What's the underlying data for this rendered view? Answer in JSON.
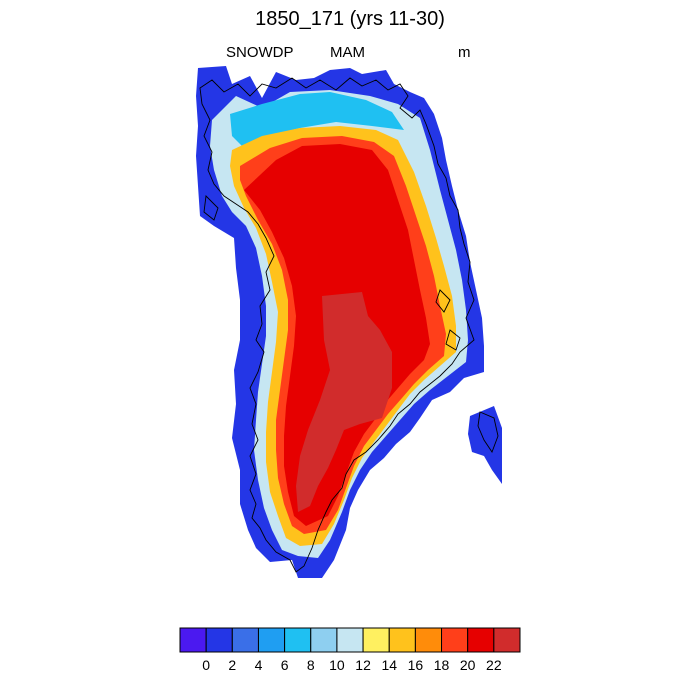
{
  "title": "1850_171 (yrs 11-30)",
  "left_label": "SNOWDP",
  "center_label": "MAM",
  "right_label": "m",
  "colorbar": {
    "colors": [
      "#4b19f0",
      "#2436e6",
      "#3a6fe8",
      "#1f9ef2",
      "#1fc0f2",
      "#8ecff0",
      "#c6e6f2",
      "#fff060",
      "#ffc21c",
      "#ff8c0a",
      "#ff3f1a",
      "#e60000",
      "#d12c2c"
    ],
    "tick_labels": [
      "0",
      "2",
      "4",
      "6",
      "8",
      "10",
      "12",
      "14",
      "16",
      "18",
      "20",
      "22"
    ]
  }
}
